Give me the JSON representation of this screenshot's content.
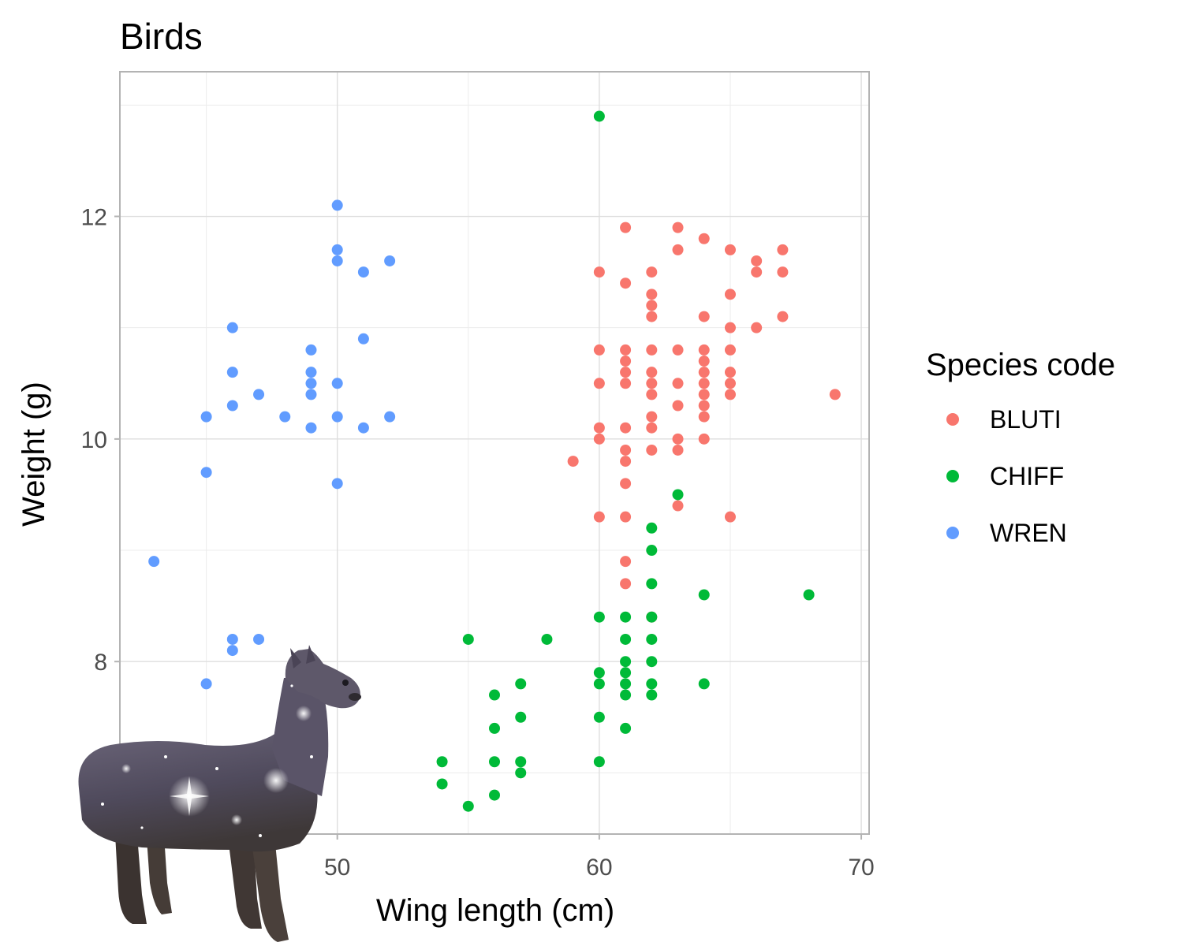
{
  "chart_data": {
    "type": "scatter",
    "title": "Birds",
    "xlabel": "Wing length (cm)",
    "ylabel": "Weight (g)",
    "xlim": [
      41.7,
      70.3
    ],
    "ylim": [
      6.45,
      13.3
    ],
    "x_ticks": [
      50,
      60,
      70
    ],
    "y_ticks": [
      8,
      10,
      12
    ],
    "grid": true,
    "legend": {
      "title": "Species code",
      "position": "right"
    },
    "series": [
      {
        "name": "BLUTI",
        "color": "#F8766D",
        "points": [
          [
            59,
            9.8
          ],
          [
            60,
            11.5
          ],
          [
            60,
            10.8
          ],
          [
            60,
            10.5
          ],
          [
            60,
            10.1
          ],
          [
            60,
            10.0
          ],
          [
            60,
            9.3
          ],
          [
            61,
            11.9
          ],
          [
            61,
            11.4
          ],
          [
            61,
            10.8
          ],
          [
            61,
            10.7
          ],
          [
            61,
            10.6
          ],
          [
            61,
            10.5
          ],
          [
            61,
            10.1
          ],
          [
            61,
            9.9
          ],
          [
            61,
            9.8
          ],
          [
            61,
            9.6
          ],
          [
            61,
            9.3
          ],
          [
            61,
            8.9
          ],
          [
            61,
            8.7
          ],
          [
            62,
            11.5
          ],
          [
            62,
            11.3
          ],
          [
            62,
            11.2
          ],
          [
            62,
            11.1
          ],
          [
            62,
            10.8
          ],
          [
            62,
            10.6
          ],
          [
            62,
            10.5
          ],
          [
            62,
            10.4
          ],
          [
            62,
            10.2
          ],
          [
            62,
            10.1
          ],
          [
            62,
            9.9
          ],
          [
            62,
            8.4
          ],
          [
            63,
            11.9
          ],
          [
            63,
            11.7
          ],
          [
            63,
            10.8
          ],
          [
            63,
            10.5
          ],
          [
            63,
            10.3
          ],
          [
            63,
            10.0
          ],
          [
            63,
            9.9
          ],
          [
            63,
            9.4
          ],
          [
            64,
            11.8
          ],
          [
            64,
            11.1
          ],
          [
            64,
            10.8
          ],
          [
            64,
            10.7
          ],
          [
            64,
            10.6
          ],
          [
            64,
            10.5
          ],
          [
            64,
            10.4
          ],
          [
            64,
            10.3
          ],
          [
            64,
            10.2
          ],
          [
            64,
            10.0
          ],
          [
            65,
            11.7
          ],
          [
            65,
            11.3
          ],
          [
            65,
            11.0
          ],
          [
            65,
            10.8
          ],
          [
            65,
            10.6
          ],
          [
            65,
            10.5
          ],
          [
            65,
            10.4
          ],
          [
            65,
            9.3
          ],
          [
            66,
            11.6
          ],
          [
            66,
            11.5
          ],
          [
            66,
            11.0
          ],
          [
            67,
            11.7
          ],
          [
            67,
            11.5
          ],
          [
            67,
            11.1
          ],
          [
            69,
            10.4
          ]
        ]
      },
      {
        "name": "CHIFF",
        "color": "#00BA38",
        "points": [
          [
            54,
            7.1
          ],
          [
            54,
            6.9
          ],
          [
            55,
            8.2
          ],
          [
            55,
            6.7
          ],
          [
            56,
            7.7
          ],
          [
            56,
            7.4
          ],
          [
            56,
            7.1
          ],
          [
            56,
            6.8
          ],
          [
            57,
            7.8
          ],
          [
            57,
            7.5
          ],
          [
            57,
            7.1
          ],
          [
            57,
            7.0
          ],
          [
            58,
            8.2
          ],
          [
            60,
            12.9
          ],
          [
            60,
            8.4
          ],
          [
            60,
            7.9
          ],
          [
            60,
            7.8
          ],
          [
            60,
            7.5
          ],
          [
            60,
            7.1
          ],
          [
            61,
            8.4
          ],
          [
            61,
            8.2
          ],
          [
            61,
            8.0
          ],
          [
            61,
            7.9
          ],
          [
            61,
            7.8
          ],
          [
            61,
            7.7
          ],
          [
            61,
            7.4
          ],
          [
            62,
            9.2
          ],
          [
            62,
            9.0
          ],
          [
            62,
            8.7
          ],
          [
            62,
            8.4
          ],
          [
            62,
            8.2
          ],
          [
            62,
            8.0
          ],
          [
            62,
            7.8
          ],
          [
            62,
            7.7
          ],
          [
            63,
            9.5
          ],
          [
            64,
            8.6
          ],
          [
            64,
            7.8
          ],
          [
            68,
            8.6
          ]
        ]
      },
      {
        "name": "WREN",
        "color": "#619CFF",
        "points": [
          [
            43,
            8.9
          ],
          [
            45,
            10.2
          ],
          [
            45,
            9.7
          ],
          [
            45,
            7.8
          ],
          [
            46,
            11.0
          ],
          [
            46,
            10.6
          ],
          [
            46,
            10.3
          ],
          [
            46,
            8.2
          ],
          [
            46,
            8.1
          ],
          [
            47,
            10.4
          ],
          [
            47,
            8.2
          ],
          [
            48,
            10.2
          ],
          [
            49,
            10.8
          ],
          [
            49,
            10.6
          ],
          [
            49,
            10.5
          ],
          [
            49,
            10.4
          ],
          [
            49,
            10.1
          ],
          [
            50,
            12.1
          ],
          [
            50,
            11.7
          ],
          [
            50,
            11.6
          ],
          [
            50,
            10.5
          ],
          [
            50,
            10.2
          ],
          [
            50,
            9.6
          ],
          [
            51,
            11.5
          ],
          [
            51,
            10.9
          ],
          [
            51,
            10.1
          ],
          [
            52,
            11.6
          ],
          [
            52,
            10.2
          ]
        ]
      }
    ]
  },
  "overlay_image": {
    "subject": "alpaca"
  }
}
